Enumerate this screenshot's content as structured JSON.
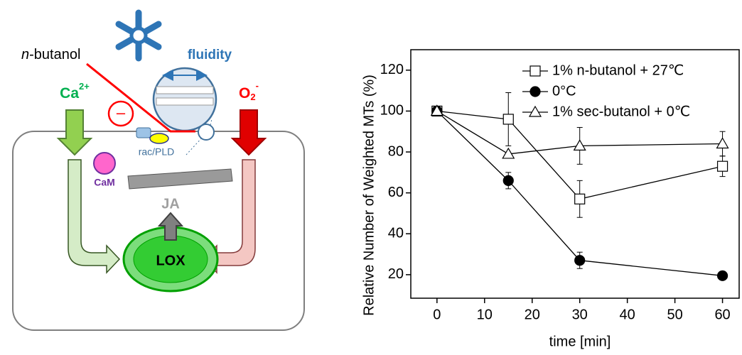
{
  "diagram": {
    "n_butanol": [
      "n",
      "-butanol"
    ],
    "fluidity": "fluidity",
    "calcium": [
      "Ca",
      "2+"
    ],
    "superoxide": [
      "O",
      "2",
      "-"
    ],
    "inhibition": "–",
    "rac_pld": "rac/PLD",
    "cam": "CaM",
    "ja": "JA",
    "lox": "LOX"
  },
  "chart_data": {
    "type": "line",
    "x_label": "time [min]",
    "y_label": "Relative Number of Weighted MTs (%)",
    "x": [
      0,
      15,
      30,
      60
    ],
    "series": [
      {
        "name": "1% n-butanol + 27℃",
        "color": "#000000",
        "marker": "square",
        "filled": false,
        "values": [
          100,
          96,
          57,
          73
        ],
        "errors": [
          0,
          13,
          9,
          5
        ]
      },
      {
        "name": "0°C",
        "color": "#000000",
        "marker": "circle",
        "filled": true,
        "values": [
          100,
          66,
          27,
          19.5
        ],
        "errors": [
          0,
          4,
          4,
          0
        ]
      },
      {
        "name": "1% sec-butanol + 0℃",
        "color": "#000000",
        "marker": "triangle",
        "filled": false,
        "values": [
          100,
          79,
          83,
          84
        ],
        "errors": [
          0,
          0,
          9,
          6
        ]
      }
    ],
    "xlim": [
      -5.5,
      63.5
    ],
    "ylim": [
      8.5,
      130
    ],
    "xticks": [
      0,
      10,
      20,
      30,
      40,
      50,
      60
    ],
    "yticks": [
      20,
      40,
      60,
      80,
      100,
      120
    ],
    "legend": "upper left"
  }
}
